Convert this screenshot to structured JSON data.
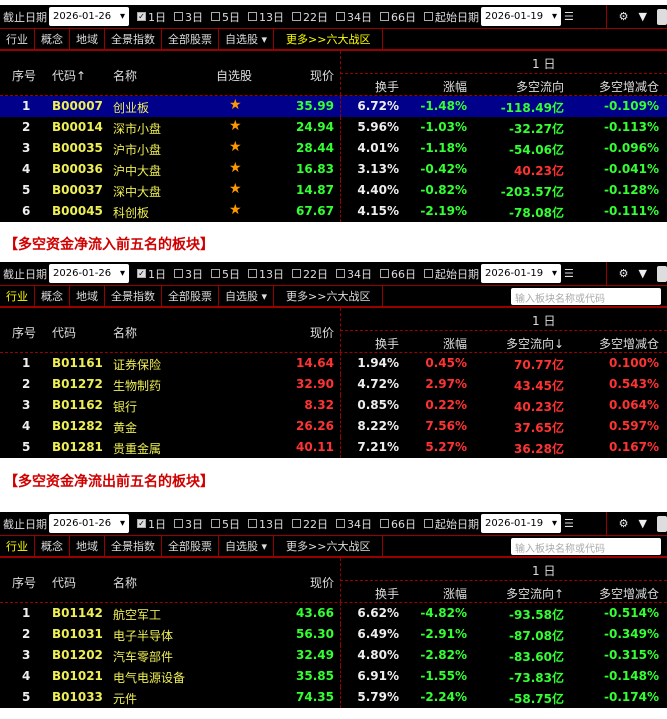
{
  "toolbar": {
    "end_label": "截止日期",
    "end_date": "2026-01-26",
    "periods": [
      {
        "label": "1日",
        "checked": true
      },
      {
        "label": "3日",
        "checked": false
      },
      {
        "label": "5日",
        "checked": false
      },
      {
        "label": "13日",
        "checked": false
      },
      {
        "label": "22日",
        "checked": false
      },
      {
        "label": "34日",
        "checked": false
      },
      {
        "label": "66日",
        "checked": false
      }
    ],
    "start_label": "起始日期",
    "start_date": "2026-01-19"
  },
  "tabs": [
    "行业",
    "概念",
    "地域",
    "全景指数",
    "全部股票",
    "自选股 ▾",
    "更多>>六大战区"
  ],
  "search_placeholder": "输入板块名称或代码",
  "colors": {
    "up": "#ff3333",
    "down": "#33ff33",
    "code": "#eeee55",
    "selected": "#00008a",
    "caption": "#d00000"
  },
  "panels": [
    {
      "headers": {
        "seq": "序号",
        "code": "代码↑",
        "name": "名称",
        "fav": "自选股",
        "price": "现价",
        "period": "1  日",
        "turnover": "换手",
        "change": "涨幅",
        "flow": "多空流向",
        "pos": "多空增减仓"
      },
      "rows": [
        [
          "1",
          "B00007",
          "创业板",
          "35.99",
          "6.72%",
          "-1.48%",
          "-118.49亿",
          "-0.109%"
        ],
        [
          "2",
          "B00014",
          "深市小盘",
          "24.94",
          "5.96%",
          "-1.03%",
          "-32.27亿",
          "-0.113%"
        ],
        [
          "3",
          "B00035",
          "沪市小盘",
          "28.44",
          "4.01%",
          "-1.18%",
          "-54.06亿",
          "-0.096%"
        ],
        [
          "4",
          "B00036",
          "沪中大盘",
          "16.83",
          "3.13%",
          "-0.42%",
          "40.23亿",
          "-0.041%"
        ],
        [
          "5",
          "B00037",
          "深中大盘",
          "14.87",
          "4.40%",
          "-0.82%",
          "-203.57亿",
          "-0.128%"
        ],
        [
          "6",
          "B00045",
          "科创板",
          "67.67",
          "4.15%",
          "-2.19%",
          "-78.08亿",
          "-0.111%"
        ]
      ]
    },
    {
      "caption": "【多空资金净流入前五名的板块】",
      "headers": {
        "seq": "序号",
        "code": "代码",
        "name": "名称",
        "price": "现价",
        "period": "1  日",
        "turnover": "换手",
        "change": "涨幅",
        "flow": "多空流向↓",
        "pos": "多空增减仓"
      },
      "rows": [
        [
          "1",
          "B01161",
          "证券保险",
          "14.64",
          "1.94%",
          "0.45%",
          "70.77亿",
          "0.100%"
        ],
        [
          "2",
          "B01272",
          "生物制药",
          "32.90",
          "4.72%",
          "2.97%",
          "43.45亿",
          "0.543%"
        ],
        [
          "3",
          "B01162",
          "银行",
          "8.32",
          "0.85%",
          "0.22%",
          "40.23亿",
          "0.064%"
        ],
        [
          "4",
          "B01282",
          "黄金",
          "26.26",
          "8.22%",
          "7.56%",
          "37.65亿",
          "0.597%"
        ],
        [
          "5",
          "B01281",
          "贵重金属",
          "40.11",
          "7.21%",
          "5.27%",
          "36.28亿",
          "0.167%"
        ]
      ]
    },
    {
      "caption": "【多空资金净流出前五名的板块】",
      "headers": {
        "seq": "序号",
        "code": "代码",
        "name": "名称",
        "price": "现价",
        "period": "1  日",
        "turnover": "换手",
        "change": "涨幅",
        "flow": "多空流向↑",
        "pos": "多空增减仓"
      },
      "rows": [
        [
          "1",
          "B01142",
          "航空军工",
          "43.66",
          "6.62%",
          "-4.82%",
          "-93.58亿",
          "-0.514%"
        ],
        [
          "2",
          "B01031",
          "电子半导体",
          "56.30",
          "6.49%",
          "-2.91%",
          "-87.08亿",
          "-0.349%"
        ],
        [
          "3",
          "B01202",
          "汽车零部件",
          "32.49",
          "4.80%",
          "-2.82%",
          "-83.60亿",
          "-0.315%"
        ],
        [
          "4",
          "B01021",
          "电气电源设备",
          "35.85",
          "6.91%",
          "-1.55%",
          "-73.83亿",
          "-0.148%"
        ],
        [
          "5",
          "B01033",
          "元件",
          "74.35",
          "5.79%",
          "-2.24%",
          "-58.75亿",
          "-0.174%"
        ]
      ]
    }
  ]
}
